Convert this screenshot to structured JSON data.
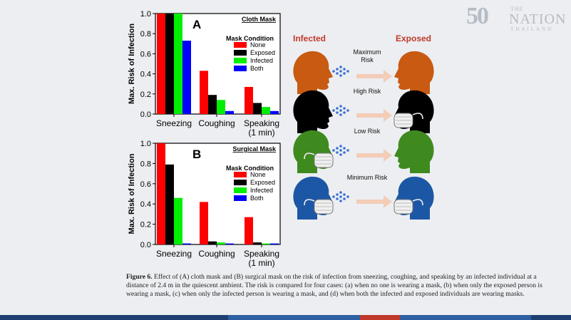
{
  "logo": {
    "number": "50",
    "the": "THE",
    "name": "NATION",
    "country": "THAILAND"
  },
  "chart_data": [
    {
      "type": "bar",
      "panel": "A",
      "box_label": "Cloth Mask",
      "ylabel": "Max. Risk of Infection",
      "ylim": [
        0,
        1.0
      ],
      "yticks": [
        0.0,
        0.2,
        0.4,
        0.6,
        0.8,
        1.0
      ],
      "categories": [
        "Sneezing",
        "Coughing",
        "Speaking\n(1 min)"
      ],
      "legend_title": "Mask Condition",
      "legend_placement": "right",
      "series": [
        {
          "name": "None",
          "color": "#ff0000",
          "values": [
            1.0,
            0.43,
            0.27
          ]
        },
        {
          "name": "Exposed",
          "color": "#000000",
          "values": [
            1.0,
            0.19,
            0.11
          ]
        },
        {
          "name": "Infected",
          "color": "#00ee00",
          "values": [
            1.0,
            0.14,
            0.07
          ]
        },
        {
          "name": "Both",
          "color": "#0000ff",
          "values": [
            0.73,
            0.03,
            0.03
          ]
        }
      ]
    },
    {
      "type": "bar",
      "panel": "B",
      "box_label": "Surgical Mask",
      "ylabel": "Max. Risk of Infection",
      "ylim": [
        0,
        1.0
      ],
      "yticks": [
        0.0,
        0.2,
        0.4,
        0.6,
        0.8,
        1.0
      ],
      "categories": [
        "Sneezing",
        "Coughing",
        "Speaking\n(1 min)"
      ],
      "legend_title": "Mask Condition",
      "legend_placement": "right",
      "series": [
        {
          "name": "None",
          "color": "#ff0000",
          "values": [
            1.0,
            0.42,
            0.27
          ]
        },
        {
          "name": "Exposed",
          "color": "#000000",
          "values": [
            0.79,
            0.03,
            0.02
          ]
        },
        {
          "name": "Infected",
          "color": "#00ee00",
          "values": [
            0.46,
            0.02,
            0.01
          ]
        },
        {
          "name": "Both",
          "color": "#0000ff",
          "values": [
            0.01,
            0.01,
            0.01
          ]
        }
      ]
    }
  ],
  "diagram": {
    "infected_header": "Infected",
    "exposed_header": "Exposed",
    "header_color": "#c0392b",
    "rows": [
      {
        "label": "Maximum\nRisk",
        "color": "#c85a12",
        "infected_mask": false,
        "exposed_mask": false
      },
      {
        "label": "High Risk",
        "color": "#000000",
        "infected_mask": false,
        "exposed_mask": true
      },
      {
        "label": "Low Risk",
        "color": "#3f8a1f",
        "infected_mask": true,
        "exposed_mask": false
      },
      {
        "label": "Minimum Risk",
        "color": "#1c57a5",
        "infected_mask": true,
        "exposed_mask": true
      }
    ]
  },
  "caption": {
    "figure_label": "Figure 6.",
    "text": " Effect of (A) cloth mask and (B) surgical mask on the risk of infection from sneezing, coughing, and speaking by an infected individual at a distance of 2.4 m in the quiescent ambient. The risk is compared for four cases: (a) when no one is wearing a mask, (b) when only the exposed person is wearing a mask, (c) when only the infected person is wearing a mask, and (d) when both the infected and exposed individuals are wearing masks."
  },
  "footer_colors": [
    "#1e3f73",
    "#2d5fa3",
    "#c0392b",
    "#2d5fa3",
    "#1e3f73"
  ]
}
